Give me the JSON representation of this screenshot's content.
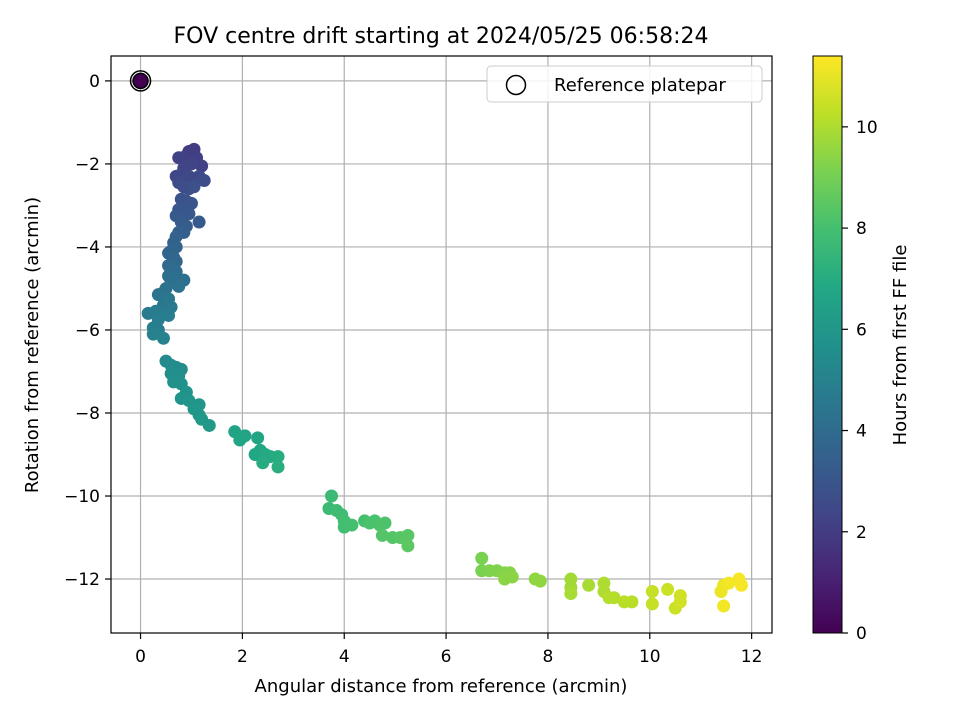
{
  "chart_data": {
    "type": "scatter",
    "title": "FOV centre drift starting at 2024/05/25 06:58:24",
    "xlabel": "Angular distance from reference (arcmin)",
    "ylabel": "Rotation from reference (arcmin)",
    "xlim": [
      -0.58,
      12.4
    ],
    "ylim": [
      -13.3,
      0.6
    ],
    "x_ticks": [
      0,
      2,
      4,
      6,
      8,
      10,
      12
    ],
    "y_ticks": [
      0,
      -2,
      -4,
      -6,
      -8,
      -10,
      -12
    ],
    "x_tick_labels": [
      "0",
      "2",
      "4",
      "6",
      "8",
      "10",
      "12"
    ],
    "y_tick_labels": [
      "0",
      "−2",
      "−4",
      "−6",
      "−8",
      "−10",
      "−12"
    ],
    "grid": true,
    "legend": {
      "position": "top-right",
      "label": "Reference platepar"
    },
    "reference_point": {
      "x": 0,
      "y": 0
    },
    "colorbar": {
      "label": "Hours from first FF file",
      "range": [
        0,
        11.4
      ],
      "ticks": [
        0,
        2,
        4,
        6,
        8,
        10
      ],
      "tick_labels": [
        "0",
        "2",
        "4",
        "6",
        "8",
        "10"
      ],
      "colormap": "viridis"
    },
    "points": [
      {
        "x": 0.95,
        "y": -1.7,
        "t": 2.0
      },
      {
        "x": 1.05,
        "y": -1.65,
        "t": 2.0
      },
      {
        "x": 0.9,
        "y": -1.8,
        "t": 2.1
      },
      {
        "x": 1.1,
        "y": -1.85,
        "t": 2.1
      },
      {
        "x": 0.75,
        "y": -1.85,
        "t": 2.2
      },
      {
        "x": 1.2,
        "y": -2.05,
        "t": 2.2
      },
      {
        "x": 1.0,
        "y": -2.0,
        "t": 2.3
      },
      {
        "x": 0.85,
        "y": -2.1,
        "t": 2.3
      },
      {
        "x": 0.7,
        "y": -2.3,
        "t": 2.4
      },
      {
        "x": 0.8,
        "y": -2.25,
        "t": 2.4
      },
      {
        "x": 0.95,
        "y": -2.3,
        "t": 2.5
      },
      {
        "x": 1.15,
        "y": -2.3,
        "t": 2.5
      },
      {
        "x": 1.25,
        "y": -2.4,
        "t": 2.6
      },
      {
        "x": 0.75,
        "y": -2.45,
        "t": 2.6
      },
      {
        "x": 0.85,
        "y": -2.55,
        "t": 2.7
      },
      {
        "x": 0.95,
        "y": -2.6,
        "t": 2.7
      },
      {
        "x": 1.05,
        "y": -2.55,
        "t": 2.8
      },
      {
        "x": 0.8,
        "y": -2.85,
        "t": 2.9
      },
      {
        "x": 0.9,
        "y": -2.9,
        "t": 2.9
      },
      {
        "x": 1.0,
        "y": -2.95,
        "t": 3.0
      },
      {
        "x": 0.75,
        "y": -3.1,
        "t": 3.0
      },
      {
        "x": 0.85,
        "y": -3.15,
        "t": 3.1
      },
      {
        "x": 0.95,
        "y": -3.2,
        "t": 3.1
      },
      {
        "x": 0.7,
        "y": -3.25,
        "t": 3.2
      },
      {
        "x": 1.15,
        "y": -3.4,
        "t": 3.2
      },
      {
        "x": 0.8,
        "y": -3.4,
        "t": 3.3
      },
      {
        "x": 0.9,
        "y": -3.5,
        "t": 3.3
      },
      {
        "x": 0.75,
        "y": -3.65,
        "t": 3.4
      },
      {
        "x": 0.85,
        "y": -3.65,
        "t": 3.4
      },
      {
        "x": 0.7,
        "y": -3.75,
        "t": 3.5
      },
      {
        "x": 0.65,
        "y": -3.9,
        "t": 3.6
      },
      {
        "x": 0.7,
        "y": -4.0,
        "t": 3.6
      },
      {
        "x": 0.6,
        "y": -4.1,
        "t": 3.7
      },
      {
        "x": 0.55,
        "y": -4.15,
        "t": 3.7
      },
      {
        "x": 0.65,
        "y": -4.25,
        "t": 3.8
      },
      {
        "x": 0.7,
        "y": -4.35,
        "t": 3.8
      },
      {
        "x": 0.55,
        "y": -4.45,
        "t": 3.9
      },
      {
        "x": 0.65,
        "y": -4.5,
        "t": 3.9
      },
      {
        "x": 0.6,
        "y": -4.55,
        "t": 4.0
      },
      {
        "x": 0.7,
        "y": -4.6,
        "t": 4.0
      },
      {
        "x": 0.55,
        "y": -4.7,
        "t": 4.1
      },
      {
        "x": 0.85,
        "y": -4.8,
        "t": 4.1
      },
      {
        "x": 0.65,
        "y": -4.75,
        "t": 4.2
      },
      {
        "x": 0.6,
        "y": -4.85,
        "t": 4.2
      },
      {
        "x": 0.75,
        "y": -4.95,
        "t": 4.3
      },
      {
        "x": 0.5,
        "y": -5.0,
        "t": 4.3
      },
      {
        "x": 0.45,
        "y": -5.1,
        "t": 4.4
      },
      {
        "x": 0.35,
        "y": -5.15,
        "t": 4.4
      },
      {
        "x": 0.55,
        "y": -5.25,
        "t": 4.5
      },
      {
        "x": 0.45,
        "y": -5.4,
        "t": 4.5
      },
      {
        "x": 0.6,
        "y": -5.45,
        "t": 4.6
      },
      {
        "x": 0.5,
        "y": -5.55,
        "t": 4.6
      },
      {
        "x": 0.3,
        "y": -5.55,
        "t": 4.7
      },
      {
        "x": 0.15,
        "y": -5.6,
        "t": 4.7
      },
      {
        "x": 0.55,
        "y": -5.65,
        "t": 4.8
      },
      {
        "x": 0.35,
        "y": -5.75,
        "t": 4.8
      },
      {
        "x": 0.25,
        "y": -5.95,
        "t": 4.9
      },
      {
        "x": 0.35,
        "y": -6.0,
        "t": 4.9
      },
      {
        "x": 0.25,
        "y": -6.1,
        "t": 5.0
      },
      {
        "x": 0.45,
        "y": -6.2,
        "t": 5.0
      },
      {
        "x": 0.5,
        "y": -6.75,
        "t": 5.4
      },
      {
        "x": 0.6,
        "y": -6.85,
        "t": 5.4
      },
      {
        "x": 0.7,
        "y": -6.9,
        "t": 5.5
      },
      {
        "x": 0.8,
        "y": -6.95,
        "t": 5.5
      },
      {
        "x": 0.6,
        "y": -7.05,
        "t": 5.6
      },
      {
        "x": 0.75,
        "y": -7.1,
        "t": 5.6
      },
      {
        "x": 0.65,
        "y": -7.25,
        "t": 5.7
      },
      {
        "x": 0.8,
        "y": -7.3,
        "t": 5.7
      },
      {
        "x": 0.9,
        "y": -7.5,
        "t": 5.8
      },
      {
        "x": 0.8,
        "y": -7.65,
        "t": 5.8
      },
      {
        "x": 0.95,
        "y": -7.7,
        "t": 5.9
      },
      {
        "x": 1.15,
        "y": -7.8,
        "t": 5.9
      },
      {
        "x": 1.05,
        "y": -7.9,
        "t": 6.0
      },
      {
        "x": 1.15,
        "y": -8.05,
        "t": 6.0
      },
      {
        "x": 1.2,
        "y": -8.15,
        "t": 6.1
      },
      {
        "x": 1.35,
        "y": -8.3,
        "t": 6.1
      },
      {
        "x": 1.85,
        "y": -8.45,
        "t": 6.6
      },
      {
        "x": 2.05,
        "y": -8.55,
        "t": 6.6
      },
      {
        "x": 1.95,
        "y": -8.65,
        "t": 6.7
      },
      {
        "x": 2.3,
        "y": -8.6,
        "t": 6.7
      },
      {
        "x": 2.35,
        "y": -8.9,
        "t": 6.8
      },
      {
        "x": 2.25,
        "y": -9.0,
        "t": 6.8
      },
      {
        "x": 2.45,
        "y": -9.0,
        "t": 6.9
      },
      {
        "x": 2.55,
        "y": -9.05,
        "t": 6.9
      },
      {
        "x": 2.7,
        "y": -9.05,
        "t": 7.0
      },
      {
        "x": 2.4,
        "y": -9.2,
        "t": 7.0
      },
      {
        "x": 2.7,
        "y": -9.3,
        "t": 7.1
      },
      {
        "x": 3.75,
        "y": -10.0,
        "t": 7.7
      },
      {
        "x": 3.7,
        "y": -10.3,
        "t": 7.7
      },
      {
        "x": 3.85,
        "y": -10.35,
        "t": 7.8
      },
      {
        "x": 3.95,
        "y": -10.45,
        "t": 7.8
      },
      {
        "x": 4.0,
        "y": -10.6,
        "t": 7.9
      },
      {
        "x": 4.0,
        "y": -10.75,
        "t": 7.9
      },
      {
        "x": 4.15,
        "y": -10.7,
        "t": 8.0
      },
      {
        "x": 4.4,
        "y": -10.6,
        "t": 8.0
      },
      {
        "x": 4.5,
        "y": -10.65,
        "t": 8.1
      },
      {
        "x": 4.6,
        "y": -10.6,
        "t": 8.1
      },
      {
        "x": 4.7,
        "y": -10.7,
        "t": 8.2
      },
      {
        "x": 4.8,
        "y": -10.65,
        "t": 8.2
      },
      {
        "x": 4.75,
        "y": -10.95,
        "t": 8.3
      },
      {
        "x": 4.95,
        "y": -11.0,
        "t": 8.3
      },
      {
        "x": 5.1,
        "y": -11.0,
        "t": 8.4
      },
      {
        "x": 5.25,
        "y": -10.95,
        "t": 8.4
      },
      {
        "x": 5.25,
        "y": -11.2,
        "t": 8.5
      },
      {
        "x": 6.7,
        "y": -11.5,
        "t": 9.1
      },
      {
        "x": 6.7,
        "y": -11.8,
        "t": 9.1
      },
      {
        "x": 6.85,
        "y": -11.8,
        "t": 9.2
      },
      {
        "x": 7.0,
        "y": -11.8,
        "t": 9.2
      },
      {
        "x": 7.15,
        "y": -11.85,
        "t": 9.3
      },
      {
        "x": 7.25,
        "y": -11.85,
        "t": 9.3
      },
      {
        "x": 7.3,
        "y": -11.95,
        "t": 9.4
      },
      {
        "x": 7.15,
        "y": -12.0,
        "t": 9.4
      },
      {
        "x": 7.75,
        "y": -12.0,
        "t": 9.5
      },
      {
        "x": 7.85,
        "y": -12.05,
        "t": 9.5
      },
      {
        "x": 8.45,
        "y": -12.0,
        "t": 9.8
      },
      {
        "x": 8.45,
        "y": -12.2,
        "t": 9.8
      },
      {
        "x": 8.45,
        "y": -12.35,
        "t": 9.9
      },
      {
        "x": 8.8,
        "y": -12.15,
        "t": 9.9
      },
      {
        "x": 9.1,
        "y": -12.1,
        "t": 10.0
      },
      {
        "x": 9.1,
        "y": -12.3,
        "t": 10.0
      },
      {
        "x": 9.2,
        "y": -12.45,
        "t": 10.1
      },
      {
        "x": 9.3,
        "y": -12.45,
        "t": 10.1
      },
      {
        "x": 9.5,
        "y": -12.55,
        "t": 10.2
      },
      {
        "x": 9.65,
        "y": -12.55,
        "t": 10.2
      },
      {
        "x": 10.05,
        "y": -12.3,
        "t": 10.4
      },
      {
        "x": 10.05,
        "y": -12.6,
        "t": 10.4
      },
      {
        "x": 10.35,
        "y": -12.25,
        "t": 10.5
      },
      {
        "x": 10.5,
        "y": -12.7,
        "t": 10.5
      },
      {
        "x": 10.6,
        "y": -12.4,
        "t": 10.6
      },
      {
        "x": 10.6,
        "y": -12.55,
        "t": 10.6
      },
      {
        "x": 11.4,
        "y": -12.3,
        "t": 11.1
      },
      {
        "x": 11.45,
        "y": -12.15,
        "t": 11.1
      },
      {
        "x": 11.45,
        "y": -12.65,
        "t": 11.2
      },
      {
        "x": 11.55,
        "y": -12.1,
        "t": 11.2
      },
      {
        "x": 11.75,
        "y": -12.0,
        "t": 11.3
      },
      {
        "x": 11.8,
        "y": -12.15,
        "t": 11.3
      }
    ]
  }
}
